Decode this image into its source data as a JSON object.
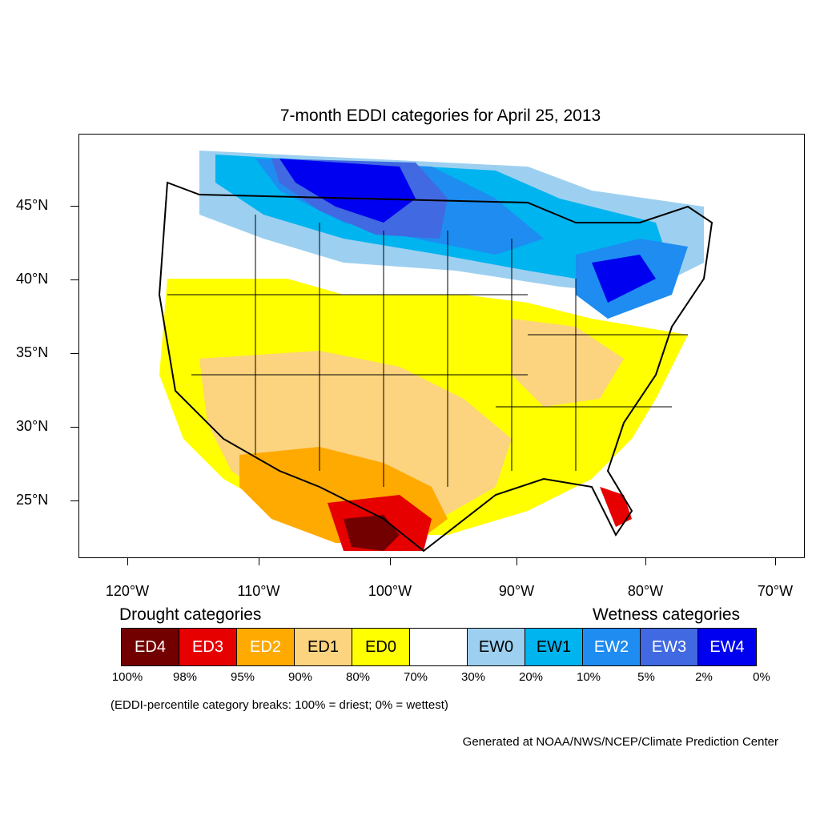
{
  "title": "7-month EDDI categories for April 25, 2013",
  "axes": {
    "lat_labels": [
      "45°N",
      "40°N",
      "35°N",
      "30°N",
      "25°N"
    ],
    "lon_labels": [
      "120°W",
      "110°W",
      "100°W",
      "90°W",
      "80°W",
      "70°W"
    ]
  },
  "legend": {
    "drought_heading": "Drought categories",
    "wetness_heading": "Wetness categories",
    "categories": [
      {
        "label": "ED4",
        "color": "#730000",
        "text_color": "#ffffff"
      },
      {
        "label": "ED3",
        "color": "#e60000",
        "text_color": "#ffffff"
      },
      {
        "label": "ED2",
        "color": "#ffaa00",
        "text_color": "#ffffff"
      },
      {
        "label": "ED1",
        "color": "#fcd37f",
        "text_color": "#000000"
      },
      {
        "label": "ED0",
        "color": "#ffff00",
        "text_color": "#000000"
      },
      {
        "label": "",
        "color": "#ffffff",
        "text_color": "#000000"
      },
      {
        "label": "EW0",
        "color": "#9dd0f0",
        "text_color": "#000000"
      },
      {
        "label": "EW1",
        "color": "#00b4f0",
        "text_color": "#000000"
      },
      {
        "label": "EW2",
        "color": "#1e8cf0",
        "text_color": "#ffffff"
      },
      {
        "label": "EW3",
        "color": "#4169e1",
        "text_color": "#ffffff"
      },
      {
        "label": "EW4",
        "color": "#0000f0",
        "text_color": "#ffffff"
      }
    ],
    "percent_breaks": [
      "100%",
      "98%",
      "95%",
      "90%",
      "80%",
      "70%",
      "30%",
      "20%",
      "10%",
      "5%",
      "2%",
      "0%"
    ]
  },
  "note": "(EDDI-percentile category breaks: 100% = driest; 0% = wettest)",
  "credit": "Generated at NOAA/NWS/NCEP/Climate Prediction Center"
}
